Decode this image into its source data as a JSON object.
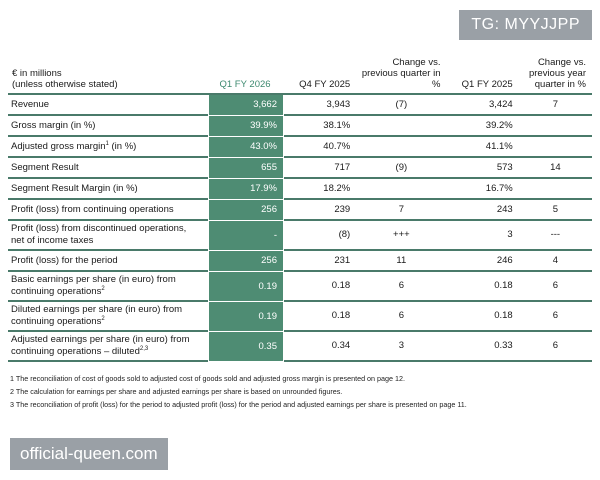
{
  "watermark_top": "TG: MYYJJPP",
  "watermark_bottom": "official-queen.com",
  "header": {
    "label": "€ in millions\n(unless otherwise stated)",
    "col1": "Q1 FY 2026",
    "col2": "Q4 FY 2025",
    "col3": "Change vs. previous quarter in %",
    "col4": "Q1 FY 2025",
    "col5": "Change vs. previous year quarter in %"
  },
  "rows": [
    {
      "label": "Revenue",
      "sup": "",
      "v1": "3,662",
      "v2": "3,943",
      "v3": "(7)",
      "v4": "3,424",
      "v5": "7"
    },
    {
      "label": "Gross margin (in %)",
      "sup": "",
      "v1": "39.9%",
      "v2": "38.1%",
      "v3": "",
      "v4": "39.2%",
      "v5": ""
    },
    {
      "label": "Adjusted gross margin",
      "sup": "1",
      "label_after": " (in %)",
      "v1": "43.0%",
      "v2": "40.7%",
      "v3": "",
      "v4": "41.1%",
      "v5": ""
    },
    {
      "label": "Segment Result",
      "sup": "",
      "v1": "655",
      "v2": "717",
      "v3": "(9)",
      "v4": "573",
      "v5": "14"
    },
    {
      "label": "Segment Result Margin (in %)",
      "sup": "",
      "v1": "17.9%",
      "v2": "18.2%",
      "v3": "",
      "v4": "16.7%",
      "v5": ""
    },
    {
      "label": "Profit (loss) from continuing operations",
      "sup": "",
      "v1": "256",
      "v2": "239",
      "v3": "7",
      "v4": "243",
      "v5": "5"
    },
    {
      "label": "Profit (loss) from discontinued operations, net of income taxes",
      "sup": "",
      "v1": "-",
      "v2": "(8)",
      "v3": "+++",
      "v4": "3",
      "v5": "---"
    },
    {
      "label": "Profit (loss) for the period",
      "sup": "",
      "v1": "256",
      "v2": "231",
      "v3": "11",
      "v4": "246",
      "v5": "4"
    },
    {
      "label": "Basic earnings per share (in euro) from continuing operations",
      "sup": "2",
      "v1": "0.19",
      "v2": "0.18",
      "v3": "6",
      "v4": "0.18",
      "v5": "6"
    },
    {
      "label": "Diluted earnings per share (in euro) from continuing operations",
      "sup": "2",
      "v1": "0.19",
      "v2": "0.18",
      "v3": "6",
      "v4": "0.18",
      "v5": "6"
    },
    {
      "label": "Adjusted earnings per share (in euro) from continuing operations – diluted",
      "sup": "2,3",
      "v1": "0.35",
      "v2": "0.34",
      "v3": "3",
      "v4": "0.33",
      "v5": "6"
    }
  ],
  "footnotes": [
    "1 The reconciliation of cost of goods sold to adjusted cost of goods sold and adjusted gross margin is presented on page 12.",
    "2 The calculation for earnings per share and adjusted earnings per share is based on unrounded figures.",
    "3 The reconciliation of profit (loss) for the period to adjusted profit (loss) for the period and adjusted earnings per share is presented on page 11."
  ]
}
